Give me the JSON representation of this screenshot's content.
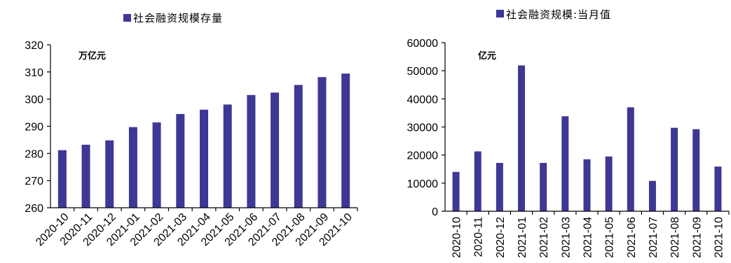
{
  "chart_data": [
    {
      "type": "bar",
      "title": "",
      "legend": [
        "社会融资规模存量"
      ],
      "legend_position": "top-center",
      "unit_label": "万亿元",
      "xlabel": "",
      "ylabel": "",
      "categories": [
        "2020-10",
        "2020-11",
        "2020-12",
        "2021-01",
        "2021-02",
        "2021-03",
        "2021-04",
        "2021-05",
        "2021-06",
        "2021-07",
        "2021-08",
        "2021-09",
        "2021-10"
      ],
      "series": [
        {
          "name": "社会融资规模存量",
          "values": [
            281.2,
            283.2,
            284.8,
            289.7,
            291.4,
            294.5,
            296.1,
            298.0,
            301.5,
            302.4,
            305.2,
            308.1,
            309.4
          ]
        }
      ],
      "ylim": [
        260,
        320
      ],
      "yticks": [
        260,
        270,
        280,
        290,
        300,
        310,
        320
      ],
      "grid": false,
      "bar_color": "#3F3795",
      "x_tick_rotation": "diagonal"
    },
    {
      "type": "bar",
      "title": "",
      "legend": [
        "社会融资规模:当月值"
      ],
      "legend_position": "top-center",
      "unit_label": "亿元",
      "xlabel": "",
      "ylabel": "",
      "categories": [
        "2020-10",
        "2020-11",
        "2020-12",
        "2021-01",
        "2021-02",
        "2021-03",
        "2021-04",
        "2021-05",
        "2021-06",
        "2021-07",
        "2021-08",
        "2021-09",
        "2021-10"
      ],
      "series": [
        {
          "name": "社会融资规模:当月值",
          "values": [
            14000,
            21300,
            17200,
            51900,
            17200,
            33800,
            18500,
            19500,
            37000,
            10800,
            29700,
            29200,
            15900
          ]
        }
      ],
      "ylim": [
        0,
        60000
      ],
      "yticks": [
        0,
        10000,
        20000,
        30000,
        40000,
        50000,
        60000
      ],
      "grid": false,
      "bar_color": "#3F3795",
      "x_tick_rotation": "vertical"
    }
  ]
}
